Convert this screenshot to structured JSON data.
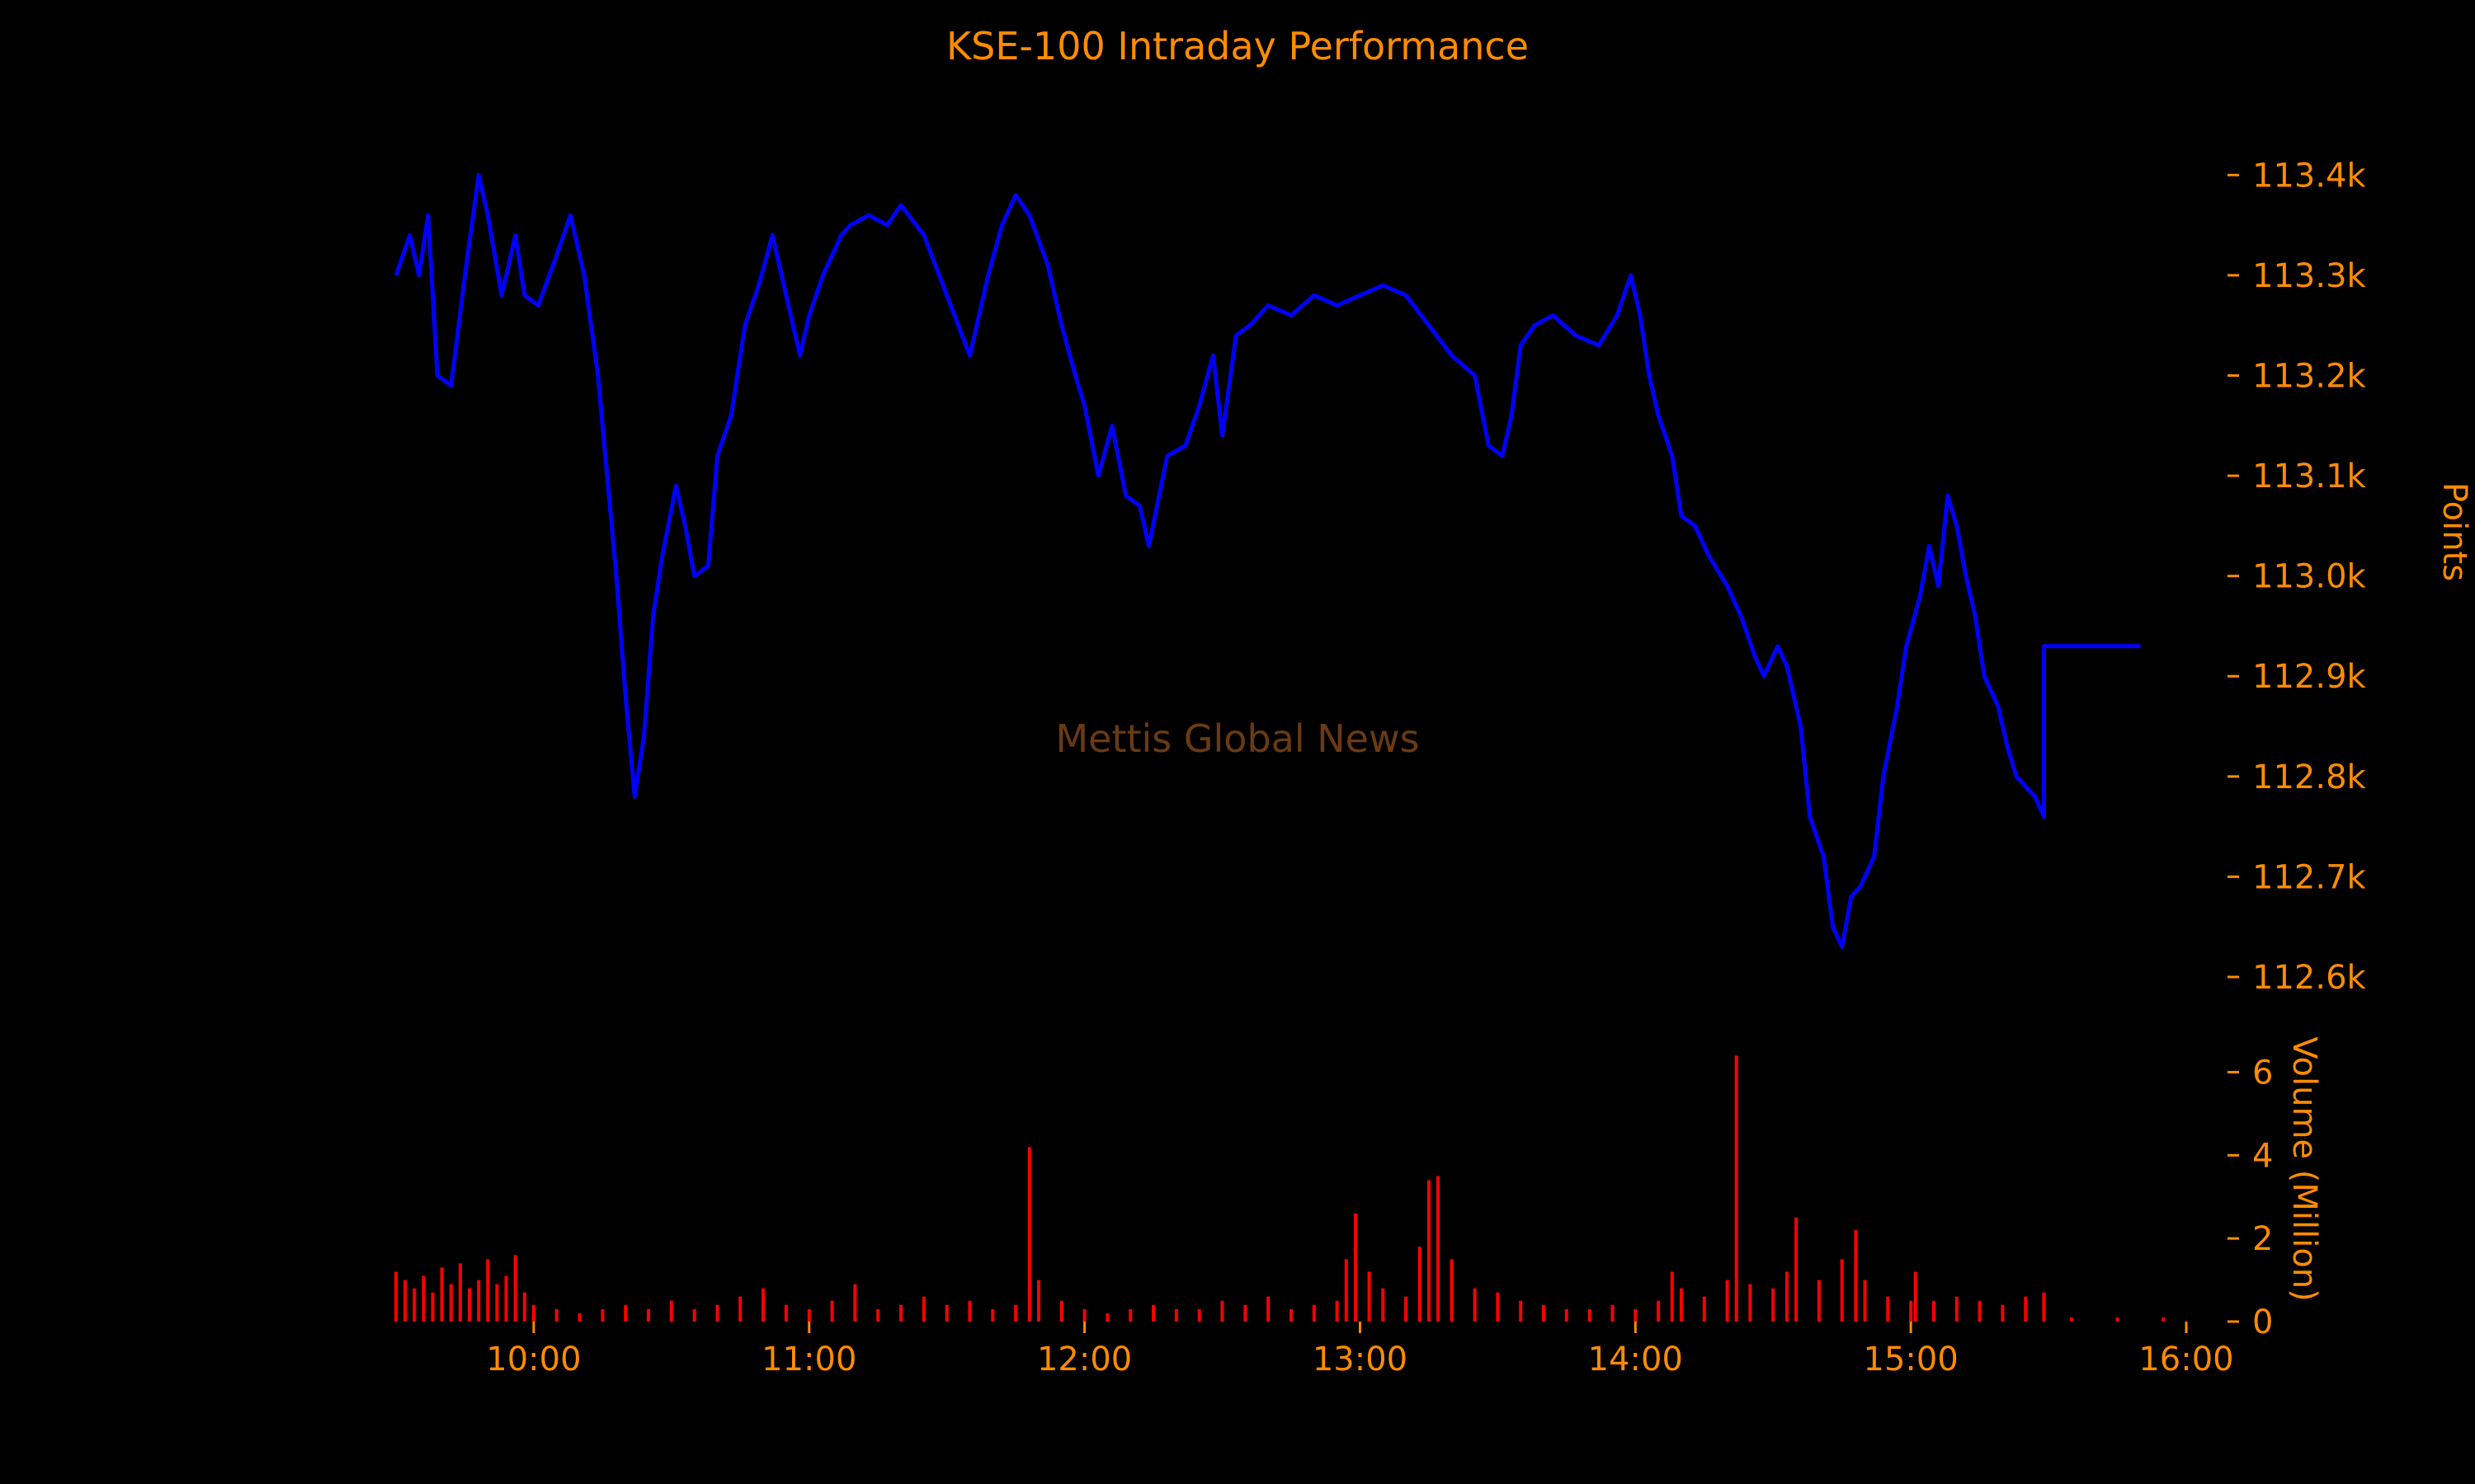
{
  "colors": {
    "background": "#000000",
    "text": "#ff8c00",
    "watermark": "#6b3a12",
    "price_line": "#0000ff",
    "volume_bars": "#ff0000"
  },
  "chart_data": {
    "type": "line",
    "title": "KSE-100 Intraday Performance",
    "watermark": "Mettis Global News",
    "x_tick_labels": [
      "10:00",
      "11:00",
      "12:00",
      "13:00",
      "14:00",
      "15:00",
      "16:00"
    ],
    "xlim": [
      "09:30",
      "16:00"
    ],
    "price": {
      "ylabel": "Points",
      "ylim": [
        112600,
        113420
      ],
      "y_tick_labels": [
        "113.4k",
        "113.3k",
        "113.2k",
        "113.1k",
        "113.0k",
        "112.9k",
        "112.8k",
        "112.7k",
        "112.6k"
      ],
      "y_ticks": [
        113400,
        113300,
        113200,
        113100,
        113000,
        112900,
        112800,
        112700,
        112600
      ],
      "series": [
        {
          "x": [
            "09:30",
            "09:33",
            "09:35",
            "09:37",
            "09:39",
            "09:42",
            "09:45",
            "09:48",
            "09:50",
            "09:53",
            "09:56",
            "09:58",
            "10:01",
            "10:05",
            "10:08",
            "10:11",
            "10:14",
            "10:16",
            "10:18",
            "10:20",
            "10:22",
            "10:24",
            "10:26",
            "10:28",
            "10:31",
            "10:33",
            "10:35",
            "10:38",
            "10:40",
            "10:43",
            "10:46",
            "10:49",
            "10:52",
            "10:55",
            "10:58",
            "11:00",
            "11:03",
            "11:05",
            "11:07",
            "11:09",
            "11:13",
            "11:17",
            "11:20",
            "11:25",
            "11:30",
            "11:35",
            "11:39",
            "11:42",
            "11:45",
            "11:48",
            "11:52",
            "11:55",
            "11:58",
            "12:00",
            "12:03",
            "12:06",
            "12:09",
            "12:12",
            "12:14",
            "12:18",
            "12:22",
            "12:25",
            "12:28",
            "12:30",
            "12:33",
            "12:36",
            "12:40",
            "12:45",
            "12:50",
            "12:55",
            "13:00",
            "13:05",
            "13:10",
            "13:15",
            "13:20",
            "13:25",
            "13:28",
            "13:31",
            "13:33",
            "13:35",
            "13:38",
            "13:42",
            "13:47",
            "13:52",
            "13:56",
            "13:59",
            "14:01",
            "14:03",
            "14:05",
            "14:08",
            "14:10",
            "14:13",
            "14:16",
            "14:20",
            "14:23",
            "14:26",
            "14:28",
            "14:31",
            "14:33",
            "14:36",
            "14:38",
            "14:41",
            "14:43",
            "14:45",
            "14:47",
            "14:49",
            "14:52",
            "14:54",
            "14:57",
            "14:59",
            "15:02",
            "15:04",
            "15:06",
            "15:08",
            "15:10",
            "15:12",
            "15:14",
            "15:16",
            "15:19",
            "15:21",
            "15:23",
            "15:25",
            "15:27",
            "15:29",
            "15:29",
            "15:30",
            "15:35",
            "15:40",
            "15:45",
            "15:50"
          ],
          "y": [
            113300,
            113340,
            113300,
            113360,
            113200,
            113190,
            113300,
            113400,
            113360,
            113280,
            113340,
            113280,
            113270,
            113320,
            113360,
            113300,
            113200,
            113100,
            113000,
            112880,
            112780,
            112840,
            112960,
            113020,
            113090,
            113050,
            113000,
            113010,
            113120,
            113160,
            113250,
            113290,
            113340,
            113280,
            113220,
            113260,
            113300,
            113320,
            113340,
            113350,
            113360,
            113350,
            113370,
            113340,
            113280,
            113220,
            113300,
            113350,
            113380,
            113360,
            113310,
            113250,
            113200,
            113170,
            113100,
            113150,
            113080,
            113070,
            113030,
            113120,
            113130,
            113170,
            113220,
            113140,
            113240,
            113250,
            113270,
            113260,
            113280,
            113270,
            113280,
            113290,
            113280,
            113250,
            113220,
            113200,
            113130,
            113120,
            113160,
            113230,
            113250,
            113260,
            113240,
            113230,
            113260,
            113300,
            113260,
            113200,
            113160,
            113120,
            113060,
            113050,
            113020,
            112990,
            112960,
            112920,
            112900,
            112930,
            112910,
            112850,
            112760,
            112720,
            112650,
            112630,
            112680,
            112690,
            112720,
            112800,
            112870,
            112930,
            112980,
            113030,
            112990,
            113080,
            113050,
            113000,
            112960,
            112900,
            112870,
            112830,
            112800,
            112790,
            112780,
            112760,
            112930,
            112930,
            112930,
            112930,
            112930,
            112930
          ]
        }
      ]
    },
    "volume": {
      "ylabel": "Volume (Million)",
      "ylim": [
        0,
        7
      ],
      "y_tick_labels": [
        "6",
        "4",
        "2",
        "0"
      ],
      "y_ticks": [
        6,
        4,
        2,
        0
      ],
      "series": [
        {
          "type": "bar",
          "x": [
            "09:30",
            "09:32",
            "09:34",
            "09:36",
            "09:38",
            "09:40",
            "09:42",
            "09:44",
            "09:46",
            "09:48",
            "09:50",
            "09:52",
            "09:54",
            "09:56",
            "09:58",
            "10:00",
            "10:05",
            "10:10",
            "10:15",
            "10:20",
            "10:25",
            "10:30",
            "10:35",
            "10:40",
            "10:45",
            "10:50",
            "10:55",
            "11:00",
            "11:05",
            "11:10",
            "11:15",
            "11:20",
            "11:25",
            "11:30",
            "11:35",
            "11:40",
            "11:45",
            "11:48",
            "11:50",
            "11:55",
            "12:00",
            "12:05",
            "12:10",
            "12:15",
            "12:20",
            "12:25",
            "12:30",
            "12:35",
            "12:40",
            "12:45",
            "12:50",
            "12:55",
            "12:57",
            "12:59",
            "13:02",
            "13:05",
            "13:10",
            "13:13",
            "13:15",
            "13:17",
            "13:20",
            "13:25",
            "13:30",
            "13:35",
            "13:40",
            "13:45",
            "13:50",
            "13:55",
            "14:00",
            "14:05",
            "14:08",
            "14:10",
            "14:15",
            "14:20",
            "14:22",
            "14:25",
            "14:30",
            "14:33",
            "14:35",
            "14:40",
            "14:45",
            "14:48",
            "14:50",
            "14:55",
            "15:00",
            "15:01",
            "15:05",
            "15:10",
            "15:15",
            "15:20",
            "15:25",
            "15:29",
            "15:35",
            "15:45",
            "15:55"
          ],
          "values": [
            1.2,
            1.0,
            0.8,
            1.1,
            0.7,
            1.3,
            0.9,
            1.4,
            0.8,
            1.0,
            1.5,
            0.9,
            1.1,
            1.6,
            0.7,
            0.4,
            0.3,
            0.2,
            0.3,
            0.4,
            0.3,
            0.5,
            0.3,
            0.4,
            0.6,
            0.8,
            0.4,
            0.3,
            0.5,
            0.9,
            0.3,
            0.4,
            0.6,
            0.4,
            0.5,
            0.3,
            0.4,
            4.2,
            1.0,
            0.5,
            0.3,
            0.2,
            0.3,
            0.4,
            0.3,
            0.3,
            0.5,
            0.4,
            0.6,
            0.3,
            0.4,
            0.5,
            1.5,
            2.6,
            1.2,
            0.8,
            0.6,
            1.8,
            3.4,
            3.5,
            1.5,
            0.8,
            0.7,
            0.5,
            0.4,
            0.3,
            0.3,
            0.4,
            0.3,
            0.5,
            1.2,
            0.8,
            0.6,
            1.0,
            6.4,
            0.9,
            0.8,
            1.2,
            2.5,
            1.0,
            1.5,
            2.2,
            1.0,
            0.6,
            0.5,
            1.2,
            0.5,
            0.6,
            0.5,
            0.4,
            0.6,
            0.7,
            0.1,
            0.1,
            0.1
          ]
        }
      ]
    },
    "grid": false,
    "legend": "none"
  }
}
